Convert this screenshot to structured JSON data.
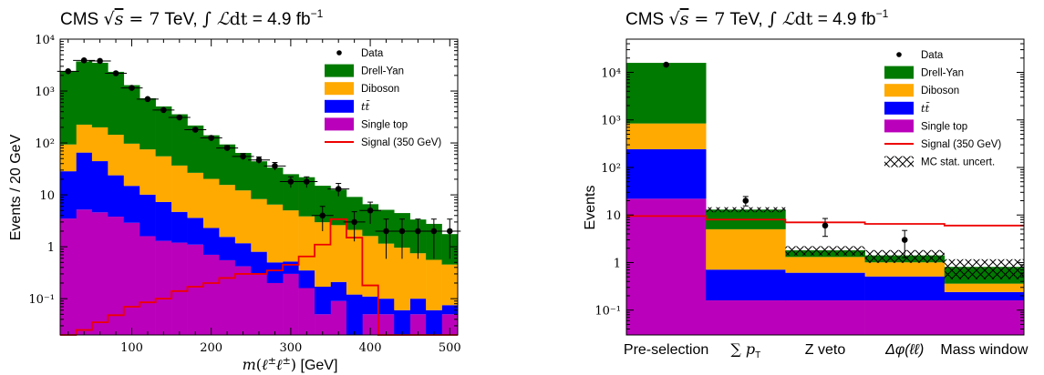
{
  "chart_data": [
    {
      "type": "bar",
      "title": "CMS √s = 7 TeV, ∫ ℒdt = 4.9 fb⁻¹",
      "xlabel": "m(ℓ±ℓ±) [GeV]",
      "ylabel": "Events / 20 GeV",
      "xlim": [
        10,
        510
      ],
      "ylim": [
        0.02,
        10000
      ],
      "yscale": "log",
      "x_ticks": [
        "100",
        "200",
        "300",
        "400",
        "500"
      ],
      "y_ticks": [
        "10⁻¹",
        "1",
        "10",
        "10²",
        "10³",
        "10⁴"
      ],
      "bin_edges": [
        10,
        30,
        50,
        70,
        90,
        110,
        130,
        150,
        170,
        190,
        210,
        230,
        250,
        270,
        290,
        310,
        330,
        350,
        370,
        390,
        410,
        430,
        450,
        470,
        490,
        510
      ],
      "series": [
        {
          "name": "Single top",
          "color": "#bb00bb",
          "values": [
            3.5,
            5.2,
            4.6,
            3.8,
            2.9,
            1.6,
            1.3,
            1.2,
            1.1,
            0.7,
            0.55,
            0.42,
            0.3,
            0.2,
            0.3,
            0.16,
            0.05,
            0.09,
            0.02,
            0.05,
            0.05,
            0.02,
            0.05,
            0.02,
            0.05
          ]
        },
        {
          "name": "tt̄",
          "color": "#0000ff",
          "values": [
            25,
            60,
            40,
            20,
            12,
            8.5,
            6,
            3.5,
            2.5,
            1.6,
            1.0,
            0.75,
            0.5,
            0.3,
            0.22,
            0.19,
            0.12,
            0.12,
            0.1,
            0.06,
            0.05,
            0.04,
            0.05,
            0.04,
            0.025
          ]
        },
        {
          "name": "Diboson",
          "color": "#ffaa00",
          "values": [
            65,
            160,
            155,
            120,
            82,
            65,
            48,
            32,
            23,
            18,
            14,
            11,
            7.5,
            6,
            4.5,
            3.5,
            2.8,
            2.4,
            2.0,
            1.5,
            1.05,
            0.9,
            0.65,
            0.5,
            0.38
          ]
        },
        {
          "name": "Drell-Yan",
          "color": "#007a00",
          "values": [
            2300,
            3500,
            3300,
            2200,
            1200,
            650,
            450,
            320,
            190,
            120,
            78,
            52,
            36,
            27,
            20,
            18,
            12,
            10,
            7,
            5,
            4,
            3.5,
            2.6,
            2.2,
            1.3
          ]
        }
      ],
      "signal": {
        "name": "Signal (350 GeV)",
        "color": "#ee0000",
        "values": [
          0.02,
          0.025,
          0.035,
          0.048,
          0.07,
          0.085,
          0.1,
          0.14,
          0.17,
          0.2,
          0.25,
          0.3,
          0.3,
          0.35,
          0.45,
          0.65,
          1.1,
          3.4,
          1.5,
          0.18,
          0.02,
          0.02,
          0.02,
          0.02,
          0.02
        ]
      },
      "data": {
        "name": "Data",
        "x": [
          20,
          40,
          60,
          80,
          100,
          120,
          140,
          160,
          180,
          200,
          220,
          240,
          260,
          280,
          300,
          320,
          340,
          360,
          380,
          400,
          420,
          440,
          460,
          480,
          500
        ],
        "y": [
          2400,
          3900,
          3800,
          2200,
          1150,
          700,
          430,
          310,
          180,
          125,
          80,
          55,
          47,
          36,
          18,
          18,
          4,
          13,
          3,
          5,
          2,
          2,
          2,
          2,
          2
        ]
      },
      "legend": [
        "Data",
        "Drell-Yan",
        "Diboson",
        "tt̄",
        "Single top",
        "Signal (350 GeV)"
      ],
      "legend_position": "top-right"
    },
    {
      "type": "bar",
      "title": "CMS √s = 7 TeV, ∫ ℒdt = 4.9 fb⁻¹",
      "xlabel": "",
      "ylabel": "Events",
      "ylim": [
        0.03,
        50000
      ],
      "yscale": "log",
      "y_ticks": [
        "10⁻¹",
        "1",
        "10",
        "10²",
        "10³",
        "10⁴"
      ],
      "categories": [
        "Pre-selection",
        "∑ pT",
        "Z veto",
        "Δφ(ℓℓ)",
        "Mass window"
      ],
      "series": [
        {
          "name": "Single top",
          "color": "#bb00bb",
          "values": [
            22,
            0.16,
            0.16,
            0.16,
            0.16
          ]
        },
        {
          "name": "tt̄",
          "color": "#0000ff",
          "values": [
            220,
            0.55,
            0.45,
            0.35,
            0.08
          ]
        },
        {
          "name": "Diboson",
          "color": "#ffaa00",
          "values": [
            600,
            4.3,
            0.7,
            0.5,
            0.12
          ]
        },
        {
          "name": "Drell-Yan",
          "color": "#007a00",
          "values": [
            15000,
            8,
            0.5,
            0.4,
            0.45
          ]
        }
      ],
      "signal": {
        "name": "Signal (350 GeV)",
        "color": "#ee0000",
        "values": [
          9.5,
          8,
          7,
          6.5,
          6
        ]
      },
      "data": {
        "name": "Data",
        "y": [
          14500,
          20,
          6,
          3,
          null
        ]
      },
      "mc_uncertainty_label": "MC stat. uncert.",
      "legend": [
        "Data",
        "Drell-Yan",
        "Diboson",
        "tt̄",
        "Single top",
        "Signal (350 GeV)",
        "MC stat. uncert."
      ],
      "legend_position": "top-right"
    }
  ]
}
